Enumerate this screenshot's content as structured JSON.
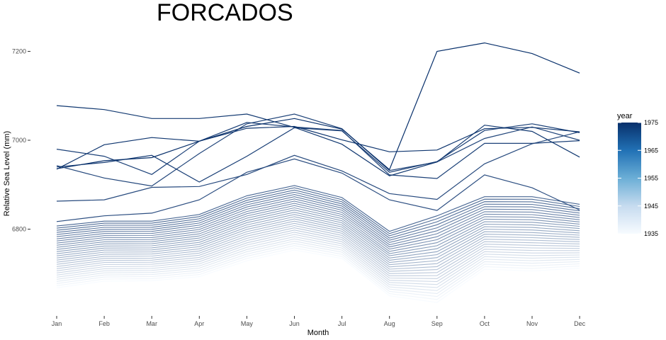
{
  "chart_data": {
    "type": "line",
    "title": "FORCADOS",
    "xlabel": "Month",
    "ylabel": "Relative Sea Level (mm)",
    "categories": [
      "Jan",
      "Feb",
      "Mar",
      "Apr",
      "May",
      "Jun",
      "Jul",
      "Aug",
      "Sep",
      "Oct",
      "Nov",
      "Dec"
    ],
    "ylim": [
      6615,
      7240
    ],
    "yticks": [
      6800,
      7000,
      7200
    ],
    "grid": false,
    "legend": {
      "title": "year",
      "position": "right",
      "type": "colorbar",
      "range": [
        1935,
        1975
      ],
      "ticks": [
        1935,
        1945,
        1955,
        1965,
        1975
      ],
      "low_color": "#f7fbff",
      "high_color": "#08306b"
    },
    "band": {
      "count": 30,
      "lower": [
        6668,
        6683,
        6684,
        6693,
        6729,
        6753,
        6734,
        6650,
        6635,
        6710,
        6706,
        6712
      ],
      "upper": [
        6807,
        6818,
        6818,
        6833,
        6875,
        6898,
        6871,
        6795,
        6830,
        6873,
        6873,
        6856
      ],
      "year_start": 1935,
      "year_end": 1964
    },
    "series": [
      {
        "values": [
          6817,
          6830,
          6836,
          6866,
          6928,
          6958,
          6926,
          6866,
          6842,
          6922,
          6893,
          6843
        ]
      },
      {
        "values": [
          6863,
          6866,
          6894,
          6896,
          6923,
          6966,
          6931,
          6880,
          6867,
          6947,
          6992,
          7019
        ]
      },
      {
        "values": [
          6943,
          6915,
          6897,
          6970,
          7037,
          7059,
          7026,
          6932,
          6951,
          7004,
          7030,
          7000
        ]
      },
      {
        "values": [
          6980,
          6964,
          6923,
          6998,
          7040,
          7030,
          7022,
          6922,
          6914,
          6993,
          6993,
          6999
        ]
      },
      {
        "values": [
          6940,
          6950,
          6966,
          6906,
          6964,
          7028,
          7021,
          6928,
          6952,
          7022,
          7037,
          7017
        ]
      },
      {
        "values": [
          7078,
          7069,
          7049,
          7049,
          7059,
          7029,
          6991,
          6920,
          6951,
          7034,
          7020,
          6962
        ]
      },
      {
        "values": [
          6935,
          6990,
          7006,
          6998,
          7027,
          7031,
          7001,
          6974,
          6978,
          7026,
          7029,
          7019
        ]
      },
      {
        "values": [
          6936,
          6954,
          6961,
          6998,
          7031,
          7049,
          7025,
          6934,
          7200,
          7219,
          7195,
          7151
        ]
      }
    ]
  }
}
